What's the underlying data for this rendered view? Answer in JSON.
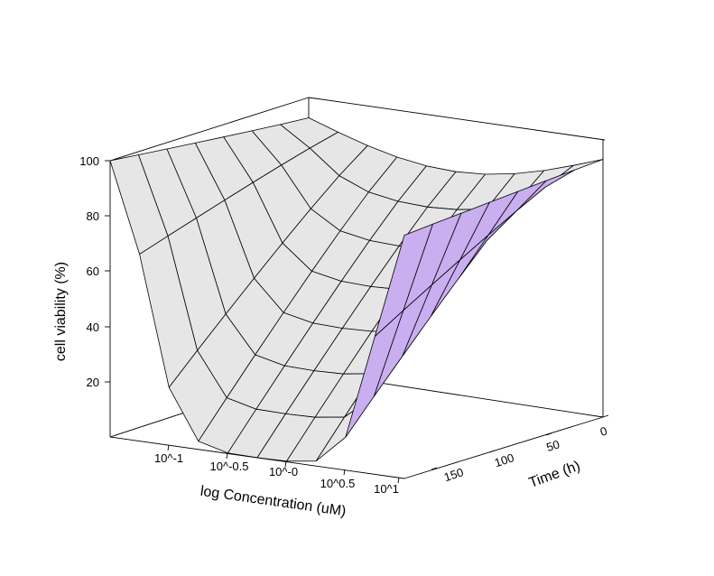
{
  "chart_data": {
    "type": "surface",
    "title": "",
    "xlabel": "log Concentration (uM)",
    "ylabel": "Time (h)",
    "zlabel": "cell viability (%)",
    "x_tick_labels": [
      "10^-1",
      "10^-0.5",
      "10^-0",
      "10^0.5",
      "10^1"
    ],
    "y_tick_labels": [
      "0",
      "50",
      "100",
      "150"
    ],
    "z_tick_labels": [
      "20",
      "40",
      "60",
      "80",
      "100"
    ],
    "zlim": [
      0,
      100
    ],
    "colors": {
      "surface_top": "#e6e6e6",
      "surface_underside": "#c9aef0",
      "mesh_line": "#000000"
    },
    "surface_wireframe_depth_sorted": true
  }
}
